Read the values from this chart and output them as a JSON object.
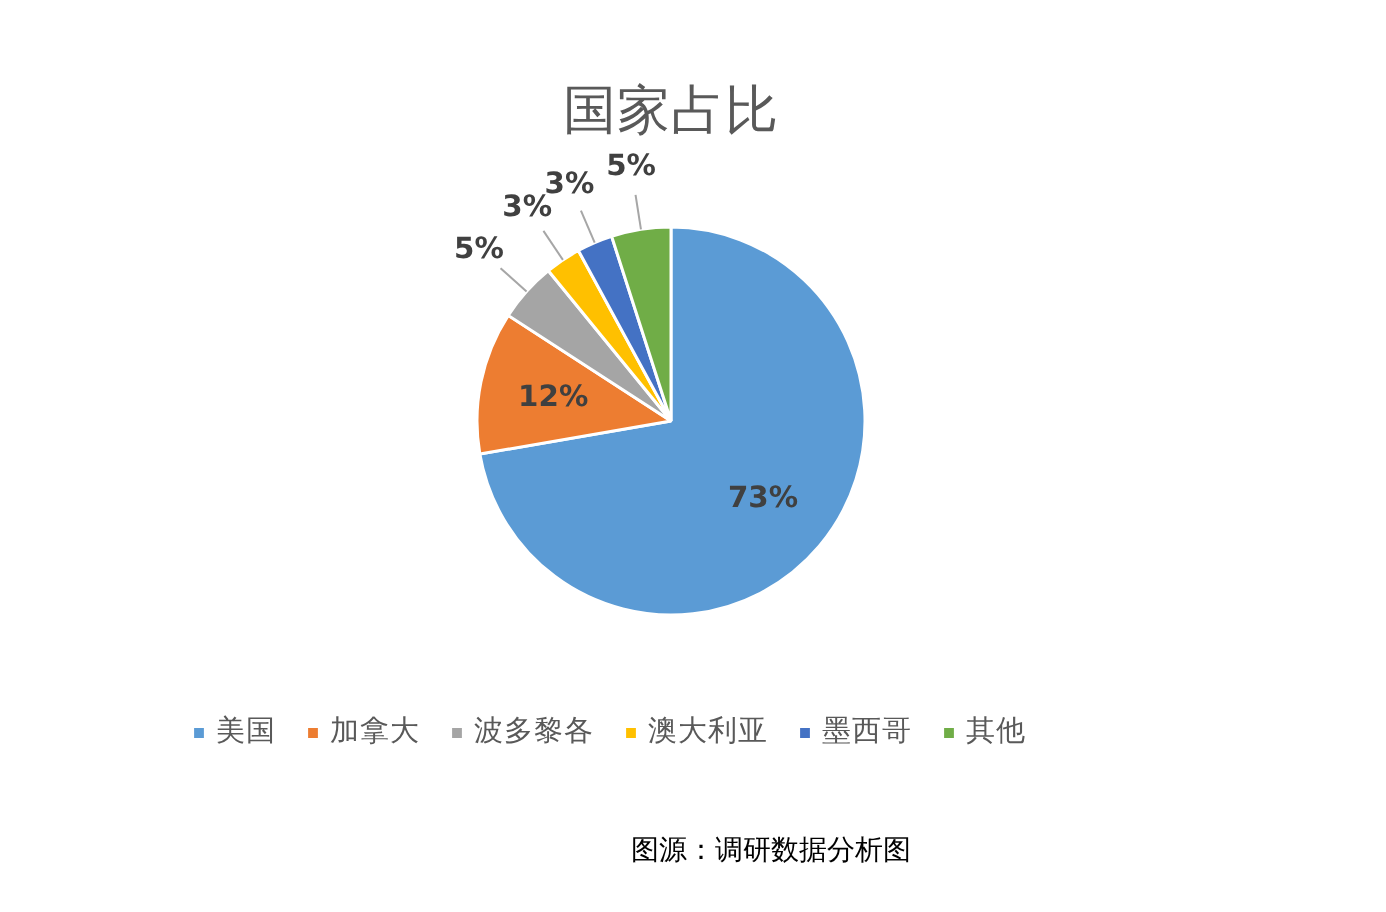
{
  "chart_data": {
    "type": "pie",
    "title": "国家占比",
    "categories": [
      "美国",
      "加拿大",
      "波多黎各",
      "澳大利亚",
      "墨西哥",
      "其他"
    ],
    "values": [
      73,
      12,
      5,
      3,
      3,
      5
    ],
    "value_labels": [
      "73%",
      "12%",
      "5%",
      "3%",
      "3%",
      "5%"
    ],
    "colors": [
      "#5b9bd5",
      "#ed7d31",
      "#a5a5a5",
      "#ffc000",
      "#4472c4",
      "#70ad47"
    ],
    "legend": "bottom",
    "annotations": [
      "图源：调研数据分析图"
    ]
  }
}
